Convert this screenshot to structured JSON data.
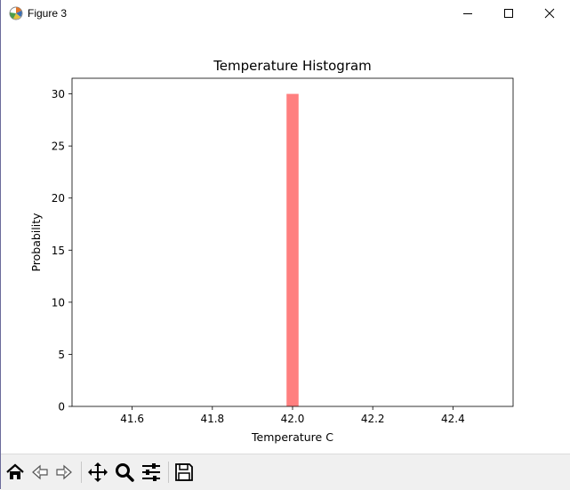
{
  "window": {
    "title": "Figure 3"
  },
  "titlebar_buttons": [
    {
      "name": "minimize",
      "icon": "minimize-icon"
    },
    {
      "name": "maximize",
      "icon": "maximize-icon"
    },
    {
      "name": "close",
      "icon": "close-icon"
    }
  ],
  "toolbar": {
    "buttons": [
      {
        "name": "home",
        "icon": "home-icon"
      },
      {
        "name": "back",
        "icon": "back-arrow-icon"
      },
      {
        "name": "forward",
        "icon": "forward-arrow-icon"
      },
      {
        "name": "pan",
        "icon": "move-icon"
      },
      {
        "name": "zoom",
        "icon": "zoom-icon"
      },
      {
        "name": "configure-subplots",
        "icon": "sliders-icon"
      },
      {
        "name": "save",
        "icon": "floppy-disk-icon"
      }
    ]
  },
  "chart_data": {
    "type": "bar",
    "title": "Temperature Histogram",
    "xlabel": "Temperature C",
    "ylabel": "Probability",
    "bars": [
      {
        "x_start": 41.985,
        "x_end": 42.015,
        "value": 30
      }
    ],
    "xlim": [
      41.45,
      42.55
    ],
    "ylim": [
      0,
      31.5
    ],
    "xticks": [
      "41.6",
      "41.8",
      "42.0",
      "42.2",
      "42.4"
    ],
    "xtick_values": [
      41.6,
      41.8,
      42.0,
      42.2,
      42.4
    ],
    "yticks": [
      "0",
      "5",
      "10",
      "15",
      "20",
      "25",
      "30"
    ],
    "ytick_values": [
      0,
      5,
      10,
      15,
      20,
      25,
      30
    ],
    "bar_color": "#ff7f7f",
    "grid": false
  }
}
